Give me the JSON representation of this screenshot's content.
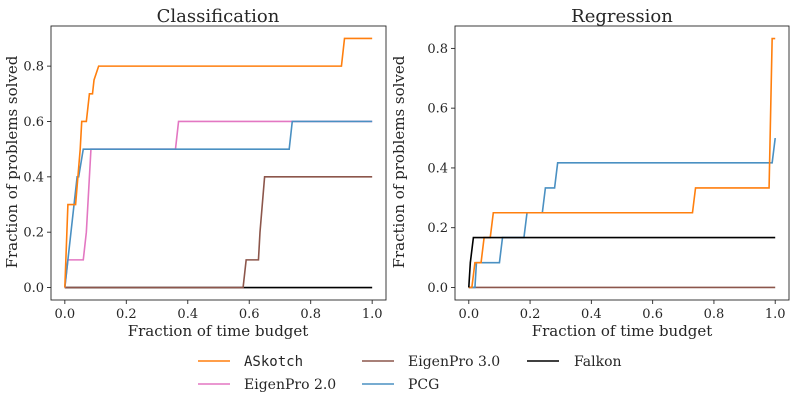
{
  "chart_data": [
    {
      "type": "line",
      "title": "Classification",
      "xlabel": "Fraction of time budget",
      "ylabel": "Fraction of problems solved",
      "xlim": [
        -0.045,
        1.045
      ],
      "ylim": [
        -0.045,
        0.945
      ],
      "xticks": [
        0.0,
        0.2,
        0.4,
        0.6,
        0.8,
        1.0
      ],
      "xtick_labels": [
        "0.0",
        "0.2",
        "0.4",
        "0.6",
        "0.8",
        "1.0"
      ],
      "yticks": [
        0.0,
        0.2,
        0.4,
        0.6,
        0.8
      ],
      "ytick_labels": [
        "0.0",
        "0.2",
        "0.4",
        "0.6",
        "0.8"
      ],
      "grid": false,
      "series": [
        {
          "name": "Falkon",
          "color": "#000000",
          "x": [
            0.0,
            1.0
          ],
          "y": [
            0.0,
            0.0
          ]
        },
        {
          "name": "EigenPro 3.0",
          "color": "#8c564b",
          "x": [
            0.0,
            0.58,
            0.59,
            0.63,
            0.635,
            0.65,
            1.0
          ],
          "y": [
            0.0,
            0.0,
            0.1,
            0.1,
            0.2,
            0.4,
            0.4
          ]
        },
        {
          "name": "EigenPro 2.0",
          "color": "#e377c2",
          "x": [
            0.0,
            0.01,
            0.06,
            0.07,
            0.085,
            0.36,
            0.37,
            1.0
          ],
          "y": [
            0.0,
            0.1,
            0.1,
            0.2,
            0.5,
            0.5,
            0.6,
            0.6
          ]
        },
        {
          "name": "PCG",
          "color": "#4a90c2",
          "x": [
            0.0,
            0.04,
            0.045,
            0.06,
            0.065,
            0.73,
            0.74,
            1.0
          ],
          "y": [
            0.0,
            0.4,
            0.4,
            0.5,
            0.5,
            0.5,
            0.6,
            0.6
          ]
        },
        {
          "name": "ASkotch",
          "color": "#ff7f0e",
          "x": [
            0.0,
            0.01,
            0.035,
            0.05,
            0.055,
            0.07,
            0.08,
            0.09,
            0.095,
            0.11,
            0.9,
            0.91,
            1.0
          ],
          "y": [
            0.0,
            0.3,
            0.3,
            0.5,
            0.6,
            0.6,
            0.7,
            0.7,
            0.75,
            0.8,
            0.8,
            0.9,
            0.9
          ]
        }
      ]
    },
    {
      "type": "line",
      "title": "Regression",
      "xlabel": "Fraction of time budget",
      "ylabel": "Fraction of problems solved",
      "xlim": [
        -0.045,
        1.045
      ],
      "ylim": [
        -0.042,
        0.875
      ],
      "xticks": [
        0.0,
        0.2,
        0.4,
        0.6,
        0.8,
        1.0
      ],
      "xtick_labels": [
        "0.0",
        "0.2",
        "0.4",
        "0.6",
        "0.8",
        "1.0"
      ],
      "yticks": [
        0.0,
        0.2,
        0.4,
        0.6,
        0.8
      ],
      "ytick_labels": [
        "0.0",
        "0.2",
        "0.4",
        "0.6",
        "0.8"
      ],
      "grid": false,
      "series": [
        {
          "name": "EigenPro 3.0",
          "color": "#8c564b",
          "x": [
            0.0,
            1.0
          ],
          "y": [
            0.0,
            0.0
          ]
        },
        {
          "name": "PCG",
          "color": "#4a90c2",
          "x": [
            0.0,
            0.02,
            0.025,
            0.1,
            0.11,
            0.18,
            0.19,
            0.24,
            0.25,
            0.28,
            0.29,
            0.99,
            1.0
          ],
          "y": [
            0.0,
            0.0,
            0.083,
            0.083,
            0.167,
            0.167,
            0.25,
            0.25,
            0.333,
            0.333,
            0.417,
            0.417,
            0.5
          ]
        },
        {
          "name": "ASkotch",
          "color": "#ff7f0e",
          "x": [
            0.0,
            0.01,
            0.02,
            0.04,
            0.05,
            0.07,
            0.08,
            0.73,
            0.74,
            0.98,
            0.99,
            1.0
          ],
          "y": [
            0.0,
            0.0,
            0.083,
            0.083,
            0.167,
            0.167,
            0.25,
            0.25,
            0.333,
            0.333,
            0.833,
            0.833
          ]
        },
        {
          "name": "Falkon",
          "color": "#000000",
          "x": [
            0.0,
            0.005,
            0.015,
            1.0
          ],
          "y": [
            0.0,
            0.083,
            0.167,
            0.167
          ]
        }
      ]
    }
  ],
  "legend": {
    "placement": "bottom-center",
    "entries": [
      {
        "label": "ASkotch",
        "color": "#ff7f0e",
        "mono": true
      },
      {
        "label": "EigenPro 2.0",
        "color": "#e377c2",
        "mono": false
      },
      {
        "label": "EigenPro 3.0",
        "color": "#8c564b",
        "mono": false
      },
      {
        "label": "PCG",
        "color": "#4a90c2",
        "mono": false
      },
      {
        "label": "Falkon",
        "color": "#000000",
        "mono": false
      }
    ]
  }
}
